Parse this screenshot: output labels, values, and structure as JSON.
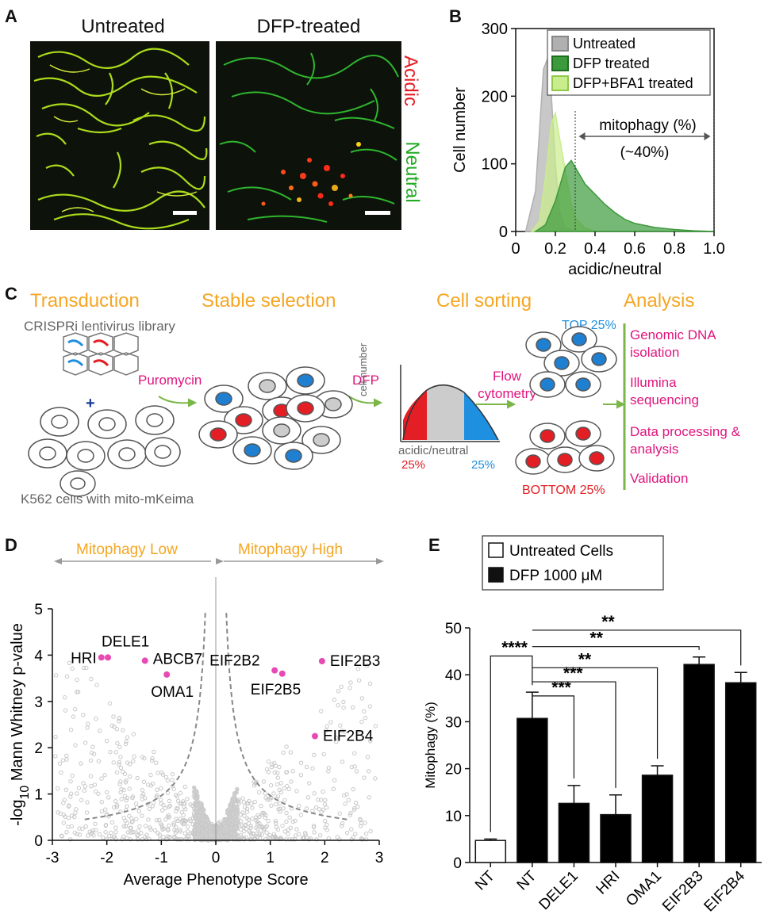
{
  "panels": {
    "A": "A",
    "B": "B",
    "C": "C",
    "D": "D",
    "E": "E"
  },
  "panel_a": {
    "left_title": "Untreated",
    "right_title": "DFP-treated",
    "side_acidic": "Acidic",
    "side_neutral": "Neutral",
    "colors": {
      "mito": "#b5e61d",
      "acidic": "#ff2a1a",
      "neutral": "#22aa22"
    }
  },
  "panel_c": {
    "steps": [
      "Transduction",
      "Stable selection",
      "Cell sorting",
      "Analysis"
    ],
    "library_label": "CRISPRi lentivirus library",
    "plus": "+",
    "cells_label": "K562 cells with mito-mKeima",
    "puromycin": "Puromycin",
    "dfp": "DFP",
    "flow_cytometry": "Flow cytometry",
    "hist_ylabel": "cell number",
    "hist_xlabel": "acidic/neutral",
    "pct_left": "25%",
    "pct_right": "25%",
    "top_label": "TOP 25%",
    "bottom_label": "BOTTOM 25%",
    "analysis_steps": [
      "Genomic DNA isolation",
      "Illumina sequencing",
      "Data processing & analysis",
      "Validation"
    ]
  },
  "chart_data": [
    {
      "type": "area",
      "panel": "B",
      "ylabel": "Cell number",
      "xlabel": "acidic/neutral",
      "xlim": [
        0,
        1.0
      ],
      "ylim": [
        0,
        300
      ],
      "xticks": [
        "0",
        "0.2",
        "0.4",
        "0.6",
        "0.8",
        "1.0"
      ],
      "yticks": [
        "0",
        "100",
        "200",
        "300"
      ],
      "legend": [
        "Untreated",
        "DFP treated",
        "DFP+BFA1 treated"
      ],
      "annotation": "mitophagy (%)",
      "annotation2": "(~40%)",
      "gate": [
        0.3,
        1.0
      ],
      "series": [
        {
          "name": "Untreated",
          "color": "#b0b0b0",
          "x": [
            0.05,
            0.1,
            0.12,
            0.14,
            0.16,
            0.18,
            0.2,
            0.22,
            0.25,
            0.3
          ],
          "y": [
            0,
            60,
            150,
            240,
            255,
            200,
            100,
            30,
            5,
            0
          ]
        },
        {
          "name": "DFP+BFA1 treated",
          "color": "#c9ec8c",
          "x": [
            0.08,
            0.12,
            0.15,
            0.18,
            0.2,
            0.22,
            0.25,
            0.28,
            0.3,
            0.35,
            0.4
          ],
          "y": [
            0,
            15,
            80,
            160,
            175,
            140,
            90,
            40,
            20,
            5,
            0
          ]
        },
        {
          "name": "DFP treated",
          "color": "#3c9a3c",
          "x": [
            0.1,
            0.15,
            0.2,
            0.25,
            0.28,
            0.3,
            0.35,
            0.4,
            0.45,
            0.5,
            0.55,
            0.6,
            0.7,
            0.8,
            0.9,
            1.0
          ],
          "y": [
            0,
            10,
            45,
            95,
            105,
            95,
            70,
            55,
            40,
            28,
            18,
            12,
            6,
            3,
            1,
            0
          ]
        }
      ]
    },
    {
      "type": "scatter",
      "panel": "D",
      "xlabel": "Average Phenotype Score",
      "ylabel": "-log10 Mann Whitney p-value",
      "ylabel_main": "-log",
      "ylabel_sub": "10",
      "ylabel_rest": " Mann Whitney p-value",
      "xlim": [
        -3,
        3
      ],
      "ylim": [
        0,
        5
      ],
      "xticks": [
        "-3",
        "-2",
        "-1",
        "0",
        "1",
        "2",
        "3"
      ],
      "yticks": [
        "0",
        "1",
        "2",
        "3",
        "4",
        "5"
      ],
      "direction_low": "Mitophagy Low",
      "direction_high": "Mitophagy High",
      "highlighted": [
        {
          "label": "HRI",
          "x": -2.1,
          "y": 3.95
        },
        {
          "label": "DELE1",
          "x": -1.98,
          "y": 3.95
        },
        {
          "label": "ABCB7",
          "x": -1.3,
          "y": 3.88
        },
        {
          "label": "OMA1",
          "x": -0.9,
          "y": 3.58
        },
        {
          "label": "EIF2B2",
          "x": 1.08,
          "y": 3.67
        },
        {
          "label": "EIF2B3",
          "x": 1.95,
          "y": 3.87
        },
        {
          "label": "EIF2B5",
          "x": 1.22,
          "y": 3.6
        },
        {
          "label": "EIF2B4",
          "x": 1.82,
          "y": 2.25
        }
      ]
    },
    {
      "type": "bar",
      "panel": "E",
      "ylabel": "Mitophagy (%)",
      "ylim": [
        0,
        50
      ],
      "yticks": [
        "0",
        "10",
        "20",
        "30",
        "40",
        "50"
      ],
      "categories": [
        "NT",
        "NT",
        "DELE1",
        "HRI",
        "OMA1",
        "EIF2B3",
        "EIF2B4"
      ],
      "values": [
        4.7,
        30.7,
        12.6,
        10.2,
        18.6,
        42.2,
        38.3
      ],
      "errors": [
        0.3,
        5.6,
        3.8,
        4.2,
        2.0,
        1.6,
        2.2
      ],
      "fills": [
        "#ffffff",
        "#000000",
        "#000000",
        "#000000",
        "#000000",
        "#000000",
        "#000000"
      ],
      "legend": [
        "Untreated Cells",
        "DFP 1000 μM"
      ],
      "significance": [
        "****",
        "***",
        "***",
        "**",
        "**",
        "**"
      ]
    }
  ]
}
